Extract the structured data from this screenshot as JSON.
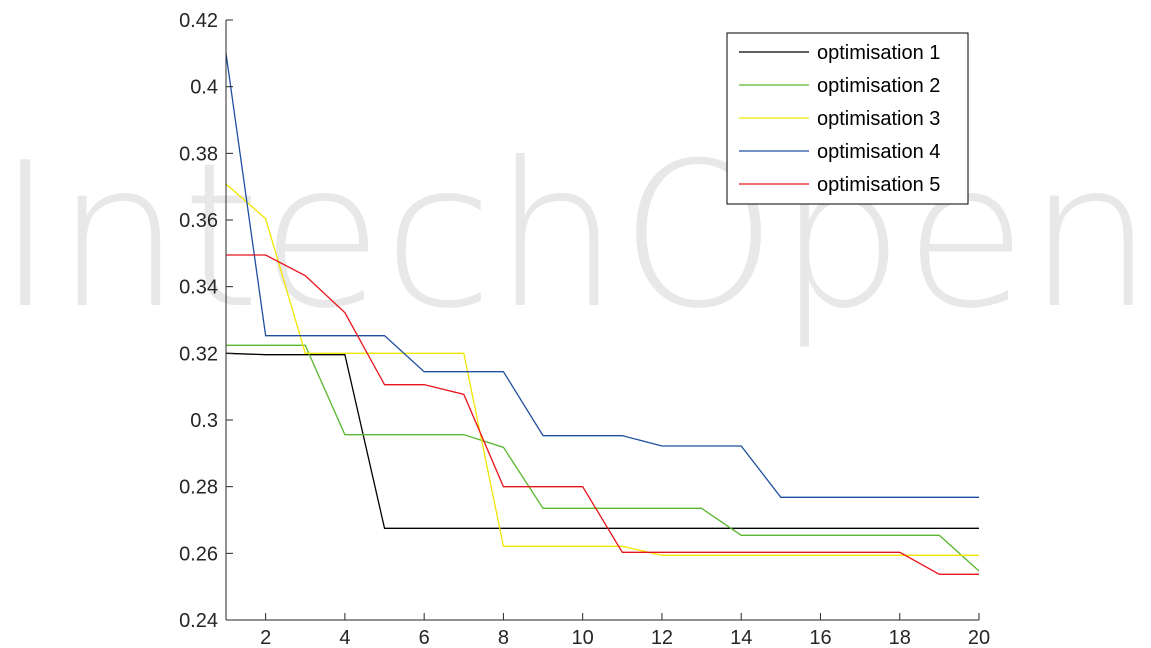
{
  "watermark": {
    "text": "IntechOpen",
    "color": "#e8e8e8"
  },
  "chart_data": {
    "type": "line",
    "title": "",
    "xlabel": "",
    "ylabel": "",
    "xlim": [
      1,
      20
    ],
    "ylim": [
      0.24,
      0.42
    ],
    "xticks": [
      2,
      4,
      6,
      8,
      10,
      12,
      14,
      16,
      18,
      20
    ],
    "xtick_labels": [
      "2",
      "4",
      "6",
      "8",
      "10",
      "12",
      "14",
      "16",
      "18",
      "20"
    ],
    "yticks": [
      0.24,
      0.26,
      0.28,
      0.3,
      0.32,
      0.34,
      0.36,
      0.38,
      0.4,
      0.42
    ],
    "ytick_labels": [
      "0.24",
      "0.26",
      "0.28",
      "0.3",
      "0.32",
      "0.34",
      "0.36",
      "0.38",
      "0.4",
      "0.42"
    ],
    "grid": false,
    "legend_position": "top-right",
    "x": [
      1,
      2,
      3,
      4,
      5,
      6,
      7,
      8,
      9,
      10,
      11,
      12,
      13,
      14,
      15,
      16,
      17,
      18,
      19,
      20
    ],
    "series": [
      {
        "name": "optimisation 1",
        "color": "#000000",
        "values": [
          0.32,
          0.3196,
          0.3196,
          0.3196,
          0.2675,
          0.2675,
          0.2675,
          0.2675,
          0.2675,
          0.2675,
          0.2675,
          0.2675,
          0.2675,
          0.2675,
          0.2675,
          0.2675,
          0.2675,
          0.2675,
          0.2675,
          0.2675
        ]
      },
      {
        "name": "optimisation 2",
        "color": "#5ab72e",
        "values": [
          0.3224,
          0.3224,
          0.3224,
          0.2956,
          0.2956,
          0.2956,
          0.2956,
          0.2918,
          0.2735,
          0.2735,
          0.2735,
          0.2735,
          0.2735,
          0.2654,
          0.2654,
          0.2654,
          0.2654,
          0.2654,
          0.2654,
          0.2547
        ]
      },
      {
        "name": "optimisation 3",
        "color": "#f2e600",
        "values": [
          0.3708,
          0.3604,
          0.32,
          0.32,
          0.32,
          0.32,
          0.32,
          0.2621,
          0.2621,
          0.2621,
          0.2621,
          0.2594,
          0.2594,
          0.2594,
          0.2594,
          0.2594,
          0.2594,
          0.2594,
          0.2594,
          0.2594
        ]
      },
      {
        "name": "optimisation 4",
        "color": "#1f4fa0",
        "values": [
          0.41,
          0.3253,
          0.3253,
          0.3253,
          0.3253,
          0.3145,
          0.3145,
          0.3145,
          0.2953,
          0.2953,
          0.2953,
          0.2922,
          0.2922,
          0.2922,
          0.2768,
          0.2768,
          0.2768,
          0.2768,
          0.2768,
          0.2768
        ]
      },
      {
        "name": "optimisation 5",
        "color": "#e8141b",
        "values": [
          0.3495,
          0.3495,
          0.3433,
          0.3322,
          0.3106,
          0.3106,
          0.3077,
          0.28,
          0.28,
          0.28,
          0.2603,
          0.2603,
          0.2603,
          0.2603,
          0.2603,
          0.2603,
          0.2603,
          0.2603,
          0.2537,
          0.2537
        ]
      }
    ]
  }
}
